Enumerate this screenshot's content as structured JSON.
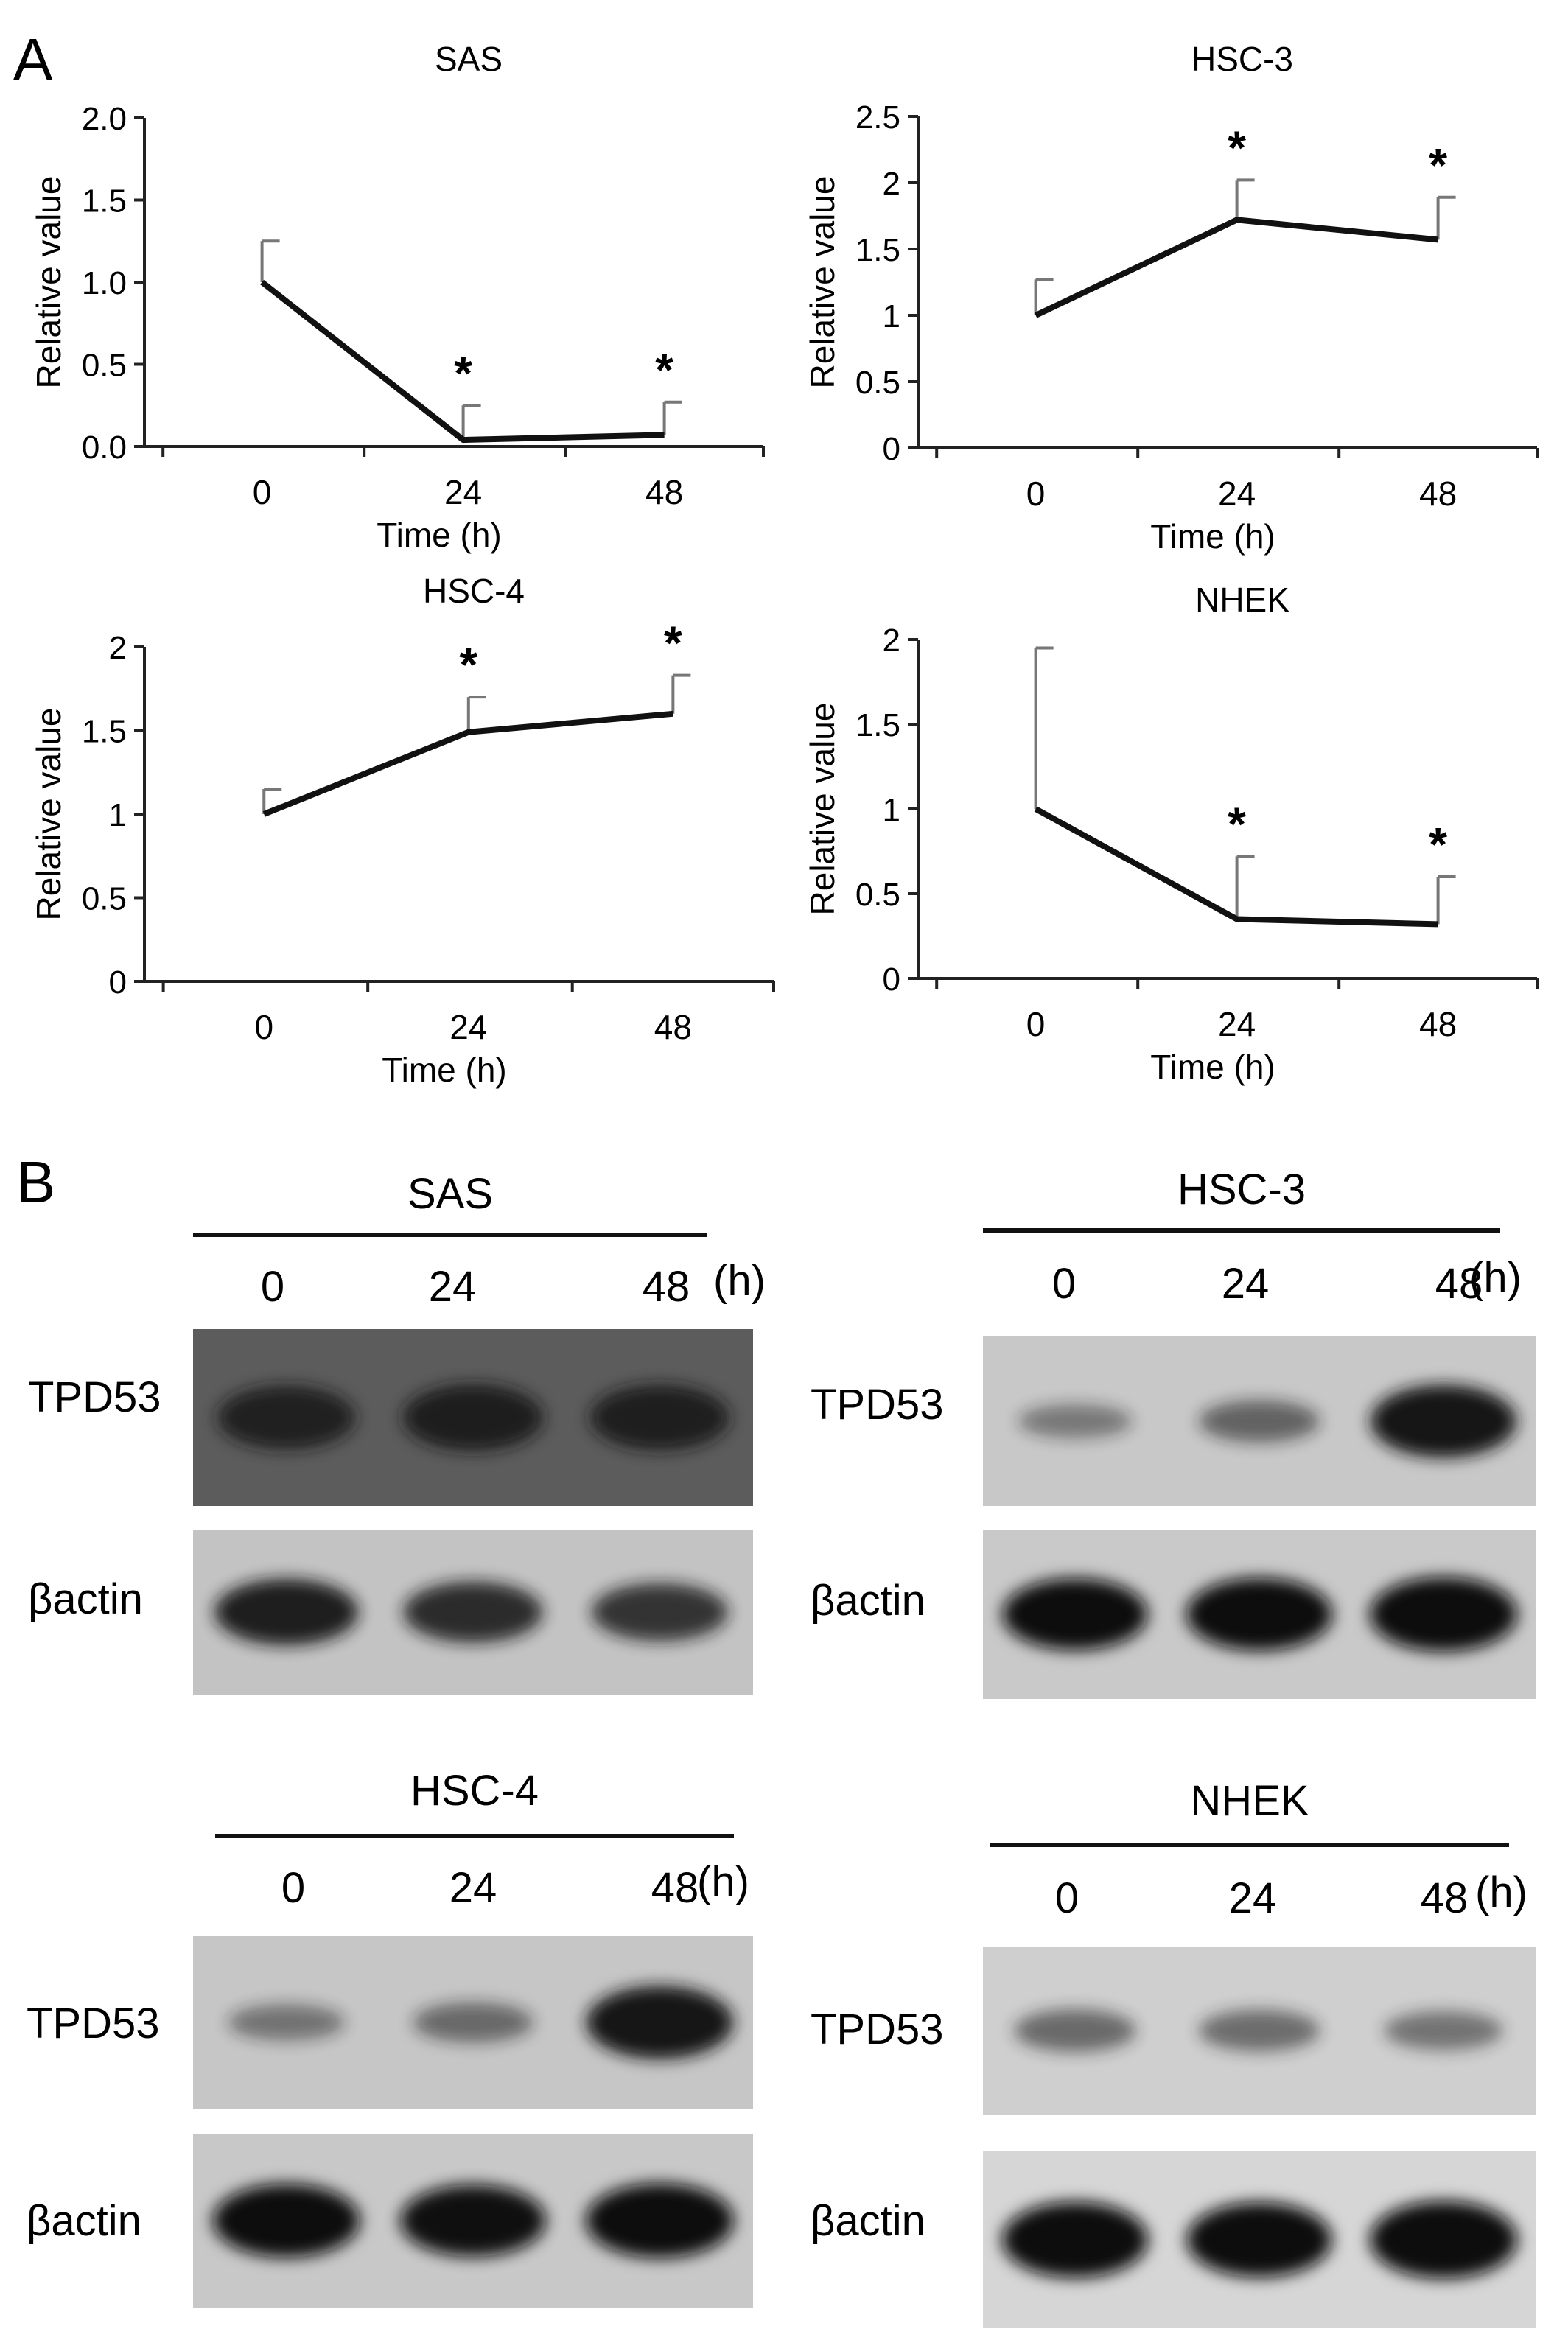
{
  "panels": {
    "a_label": "A",
    "b_label": "B"
  },
  "chart_data": [
    {
      "type": "line",
      "title": "SAS",
      "xlabel": "Time (h)",
      "ylabel": "Relative value",
      "categories": [
        "0",
        "24",
        "48"
      ],
      "series": [
        {
          "values": [
            1.0,
            0.04,
            0.07
          ],
          "error_bars": [
            0.25,
            0.21,
            0.2
          ]
        }
      ],
      "significance": [
        "",
        "*",
        "*"
      ],
      "ylim": [
        0,
        2.0
      ],
      "yticks": [
        "0.0",
        "0.5",
        "1.0",
        "1.5",
        "2.0"
      ],
      "ytick_values": [
        0,
        0.5,
        1.0,
        1.5,
        2.0
      ]
    },
    {
      "type": "line",
      "title": "HSC-3",
      "xlabel": "Time (h)",
      "ylabel": "Relative value",
      "categories": [
        "0",
        "24",
        "48"
      ],
      "series": [
        {
          "values": [
            1.0,
            1.72,
            1.57
          ],
          "error_bars": [
            0.27,
            0.3,
            0.32
          ]
        }
      ],
      "significance": [
        "",
        "*",
        "*"
      ],
      "ylim": [
        0,
        2.5
      ],
      "yticks": [
        "0",
        "0.5",
        "1",
        "1.5",
        "2",
        "2.5"
      ],
      "ytick_values": [
        0,
        0.5,
        1,
        1.5,
        2,
        2.5
      ]
    },
    {
      "type": "line",
      "title": "HSC-4",
      "xlabel": "Time (h)",
      "ylabel": "Relative value",
      "categories": [
        "0",
        "24",
        "48"
      ],
      "series": [
        {
          "values": [
            1.0,
            1.49,
            1.6
          ],
          "error_bars": [
            0.15,
            0.21,
            0.23
          ]
        }
      ],
      "significance": [
        "",
        "*",
        "*"
      ],
      "ylim": [
        0,
        2
      ],
      "yticks": [
        "0",
        "0.5",
        "1",
        "1.5",
        "2"
      ],
      "ytick_values": [
        0,
        0.5,
        1,
        1.5,
        2
      ]
    },
    {
      "type": "line",
      "title": "NHEK",
      "xlabel": "Time (h)",
      "ylabel": "Relative value",
      "categories": [
        "0",
        "24",
        "48"
      ],
      "series": [
        {
          "values": [
            1.0,
            0.35,
            0.32
          ],
          "error_bars": [
            0.95,
            0.37,
            0.28
          ]
        }
      ],
      "significance": [
        "",
        "*",
        "*"
      ],
      "ylim": [
        0,
        2
      ],
      "yticks": [
        "0",
        "0.5",
        "1",
        "1.5",
        "2"
      ],
      "ytick_values": [
        0,
        0.5,
        1,
        1.5,
        2
      ]
    }
  ],
  "blots": [
    {
      "title": "SAS",
      "lanes": [
        "0",
        "24",
        "48"
      ],
      "unit": "(h)",
      "rows": [
        {
          "label": "TPD53",
          "background": "#5c5c5c",
          "band_color": "#141414",
          "intensities": [
            0.75,
            0.8,
            0.78
          ]
        },
        {
          "label": "βactin",
          "background": "#c3c3c3",
          "band_color": "#141414",
          "intensities": [
            0.88,
            0.78,
            0.72
          ]
        }
      ]
    },
    {
      "title": "HSC-3",
      "lanes": [
        "0",
        "24",
        "48"
      ],
      "unit": "(h)",
      "rows": [
        {
          "label": "TPD53",
          "background": "#c8c8c8",
          "band_color": "#141414",
          "intensities": [
            0.25,
            0.4,
            0.97
          ]
        },
        {
          "label": "βactin",
          "background": "#c9c9c9",
          "band_color": "#0c0c0c",
          "intensities": [
            0.95,
            0.97,
            1.0
          ]
        }
      ]
    },
    {
      "title": "HSC-4",
      "lanes": [
        "0",
        "24",
        "48"
      ],
      "unit": "(h)",
      "rows": [
        {
          "label": "TPD53",
          "background": "#c6c6c6",
          "band_color": "#141414",
          "intensities": [
            0.28,
            0.35,
            0.95
          ]
        },
        {
          "label": "βactin",
          "background": "#c8c8c8",
          "band_color": "#0c0c0c",
          "intensities": [
            0.95,
            0.92,
            0.97
          ]
        }
      ]
    },
    {
      "title": "NHEK",
      "lanes": [
        "0",
        "24",
        "48"
      ],
      "unit": "(h)",
      "rows": [
        {
          "label": "TPD53",
          "background": "#cfcfcf",
          "band_color": "#202020",
          "intensities": [
            0.42,
            0.4,
            0.35
          ]
        },
        {
          "label": "βactin",
          "background": "#d6d6d6",
          "band_color": "#0a0a0a",
          "intensities": [
            0.97,
            0.95,
            1.0
          ]
        }
      ]
    }
  ]
}
